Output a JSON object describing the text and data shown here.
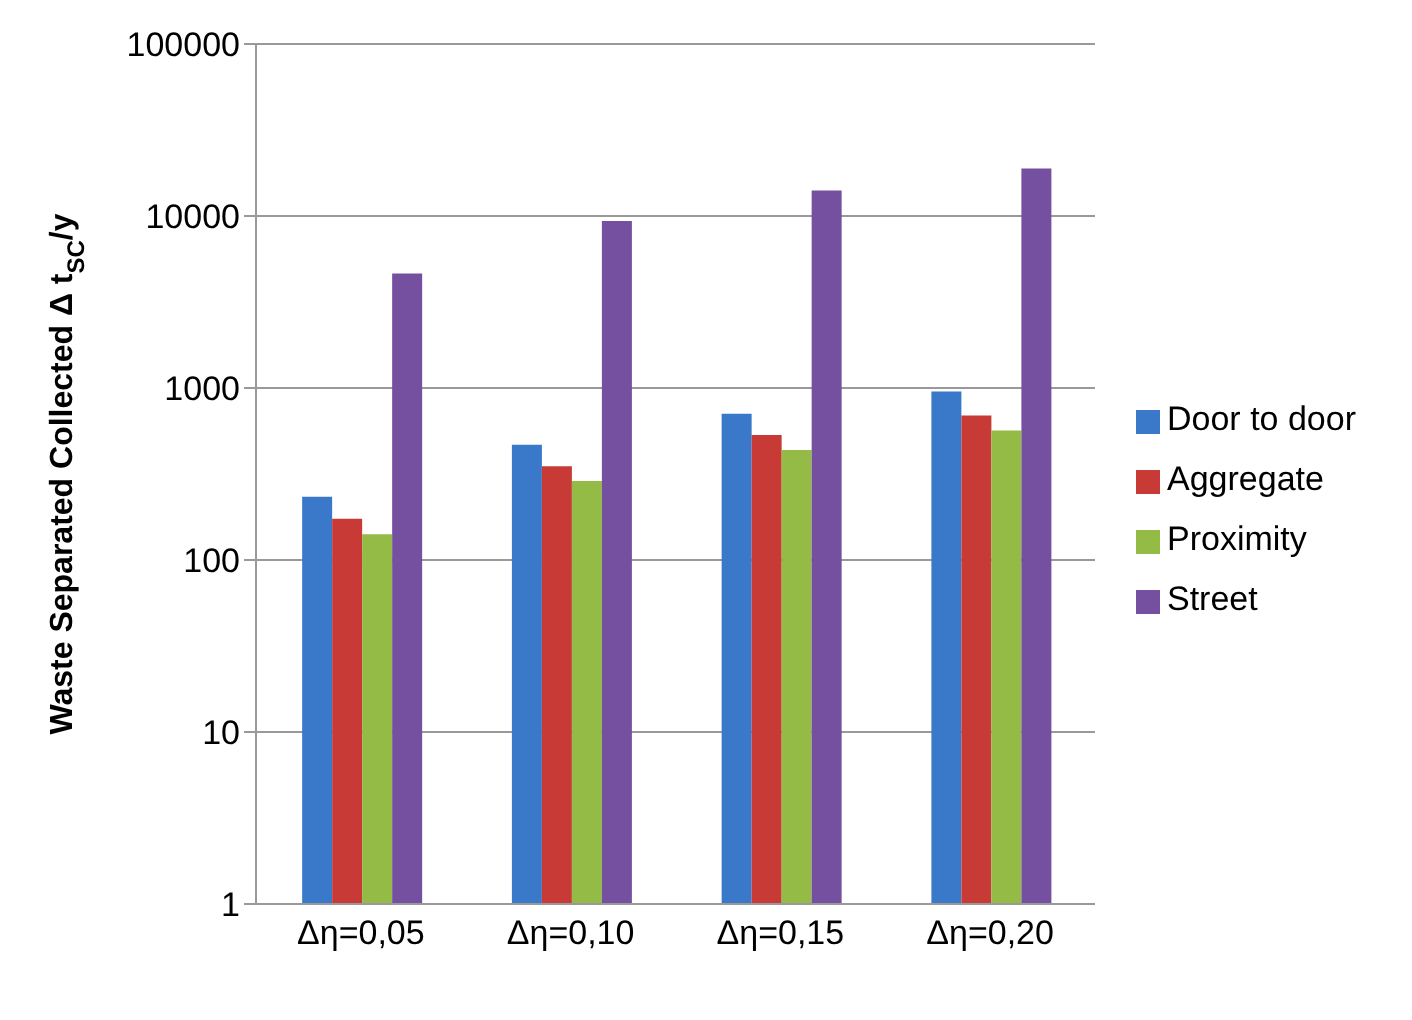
{
  "chart_data": {
    "type": "bar",
    "ylabel": "Waste Separated Collected  Δ t$_{SC}$/y",
    "categories": [
      "Δη=0,05",
      "Δη=0,10",
      "Δη=0,15",
      "Δη=0,20"
    ],
    "series": [
      {
        "name": "Door to door",
        "color": "#3a78c9",
        "values": [
          233,
          468,
          709,
          953
        ]
      },
      {
        "name": "Aggregate",
        "color": "#c83a36",
        "values": [
          174,
          351,
          533,
          691
        ]
      },
      {
        "name": "Proximity",
        "color": "#93bb46",
        "values": [
          141,
          288,
          436,
          566
        ]
      },
      {
        "name": "Street",
        "color": "#7550a0",
        "values": [
          4630,
          9350,
          14060,
          18900
        ]
      }
    ],
    "log": true,
    "ylim": [
      1,
      100000
    ],
    "yticks": [
      1,
      10,
      100,
      1000,
      10000,
      100000
    ],
    "grid": "y",
    "legend": "right"
  }
}
